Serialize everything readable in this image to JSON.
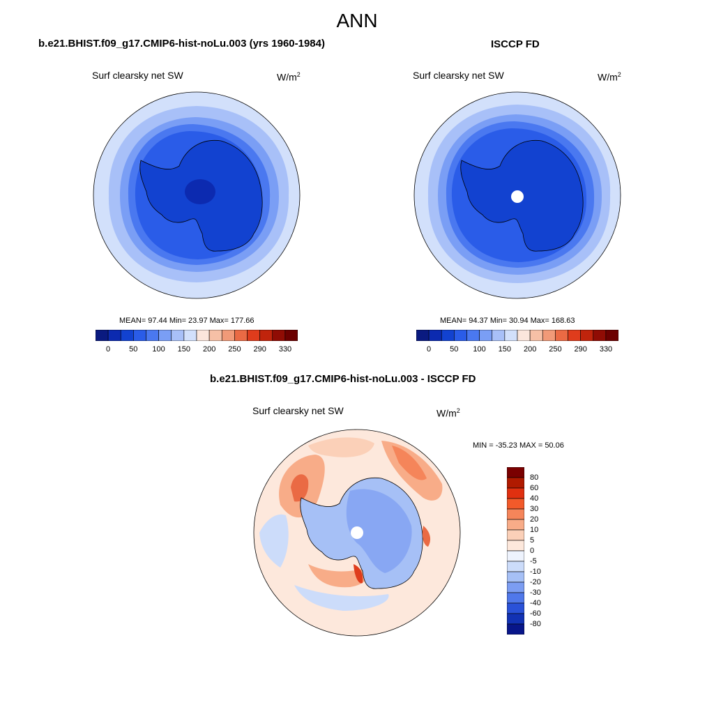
{
  "title": "ANN",
  "panels": [
    {
      "case": "b.e21.BHIST.f09_g17.CMIP6-hist-noLu.003 (yrs 1960-1984)",
      "variable": "Surf clearsky net SW",
      "units_base": "W/m",
      "units_exp": "2",
      "stats": "MEAN=  97.44  Min=  23.97  Max= 177.66"
    },
    {
      "case": "ISCCP FD",
      "variable": "Surf clearsky net SW",
      "units_base": "W/m",
      "units_exp": "2",
      "stats": "MEAN=  94.37  Min=  30.94  Max= 168.63"
    },
    {
      "case": "b.e21.BHIST.f09_g17.CMIP6-hist-noLu.003 - ISCCP FD",
      "variable": "Surf clearsky net SW",
      "units_base": "W/m",
      "units_exp": "2",
      "stats": "MIN = -35.23 MAX =  50.06"
    }
  ],
  "colorbar_main": {
    "ticks": [
      "0",
      "50",
      "100",
      "150",
      "200",
      "250",
      "290",
      "330"
    ],
    "colors": [
      "#0a1a80",
      "#0c2ab0",
      "#1242d0",
      "#2a5ce8",
      "#4a78f0",
      "#7a9ef5",
      "#a8c0f8",
      "#d2e0fb",
      "#fbe6dc",
      "#f6c0a6",
      "#f19a78",
      "#ea6a44",
      "#df3c1c",
      "#c0240c",
      "#900c04",
      "#6c0000"
    ]
  },
  "colorbar_diff": {
    "ticks": [
      "80",
      "60",
      "40",
      "30",
      "20",
      "10",
      "5",
      "0",
      "-5",
      "-10",
      "-20",
      "-30",
      "-40",
      "-60",
      "-80"
    ],
    "colors": [
      "#7a0000",
      "#b01a00",
      "#e03010",
      "#f25a2a",
      "#f5855a",
      "#f8ac88",
      "#fbd0b8",
      "#fde8dc",
      "#eef3fd",
      "#ccdcfa",
      "#a6c0f6",
      "#7c9df2",
      "#5078ea",
      "#2a52d8",
      "#1232b4",
      "#08168a"
    ]
  }
}
